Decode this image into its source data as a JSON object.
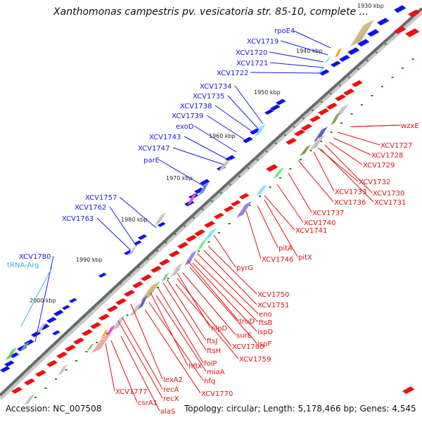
{
  "title": "Xanthomonas campestris pv. vesicatoria str. 85-10, complete ...",
  "footer": {
    "accession": "Accession: NC_007508",
    "summary": "Topology: circular; Length: 5,178,466 bp; Genes: 4,545"
  },
  "colors": {
    "forward_gene": "#1010ee",
    "reverse_gene": "#ee1010",
    "backbone": "#707070",
    "tick": "#1a8a1a",
    "label_forward": "#1a1adb",
    "label_reverse": "#e01010",
    "label_rna": "#33b8d8"
  },
  "scale_labels": [
    "1930 kbp",
    "1940 kbp",
    "1950 kbp",
    "1960 kbp",
    "1970 kbp",
    "1980 kbp",
    "1990 kbp",
    "2000 kbp"
  ],
  "forward_labels": [
    "rpoE4",
    "XCV1719",
    "XCV1720",
    "XCV1721",
    "XCV1722",
    "XCV1734",
    "XCV1735",
    "XCV1738",
    "XCV1739",
    "exoD",
    "XCV1743",
    "XCV1747",
    "parE",
    "XCV1757",
    "XCV1762",
    "XCV1763",
    "XCV1780"
  ],
  "rna_labels": [
    "tRNA-Arg"
  ],
  "reverse_labels": [
    "wzxE",
    "XCV1727",
    "XCV1728",
    "XCV1729",
    "XCV1732",
    "XCV1730",
    "XCV1733",
    "XCV1731",
    "XCV1736",
    "XCV1737",
    "XCV1740",
    "XCV1741",
    "pitA",
    "XCV1746",
    "pitX",
    "pyrG",
    "XCV1750",
    "XCV1751",
    "eno",
    "truD",
    "ftsB",
    "ispD",
    "nlpD",
    "surE",
    "ispF",
    "ftsJ",
    "XCV1760",
    "ftsH",
    "XCV1759",
    "folP",
    "hflX",
    "miaA",
    "hfq",
    "lexA2",
    "XCV1770",
    "recA",
    "recX",
    "XCV1777",
    "csrA1",
    "alaS"
  ]
}
